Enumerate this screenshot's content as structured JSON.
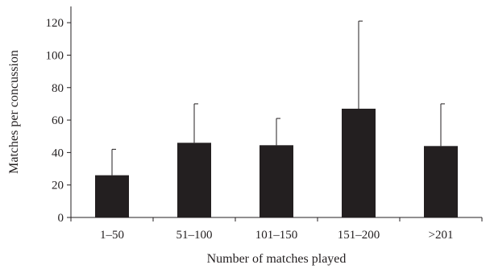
{
  "chart_data": {
    "type": "bar",
    "categories": [
      "1–50",
      "51–100",
      "101–150",
      "151–200",
      ">201"
    ],
    "values": [
      26,
      46,
      44.5,
      67,
      44
    ],
    "error_upper": [
      42,
      70,
      61,
      121,
      70
    ],
    "xlabel": "Number of matches played",
    "ylabel": "Matches per concussion",
    "ylim": [
      0,
      130
    ],
    "yticks": [
      0,
      20,
      40,
      60,
      80,
      100,
      120
    ],
    "grid": false,
    "legend": "none",
    "bar_color": "#231f20"
  }
}
